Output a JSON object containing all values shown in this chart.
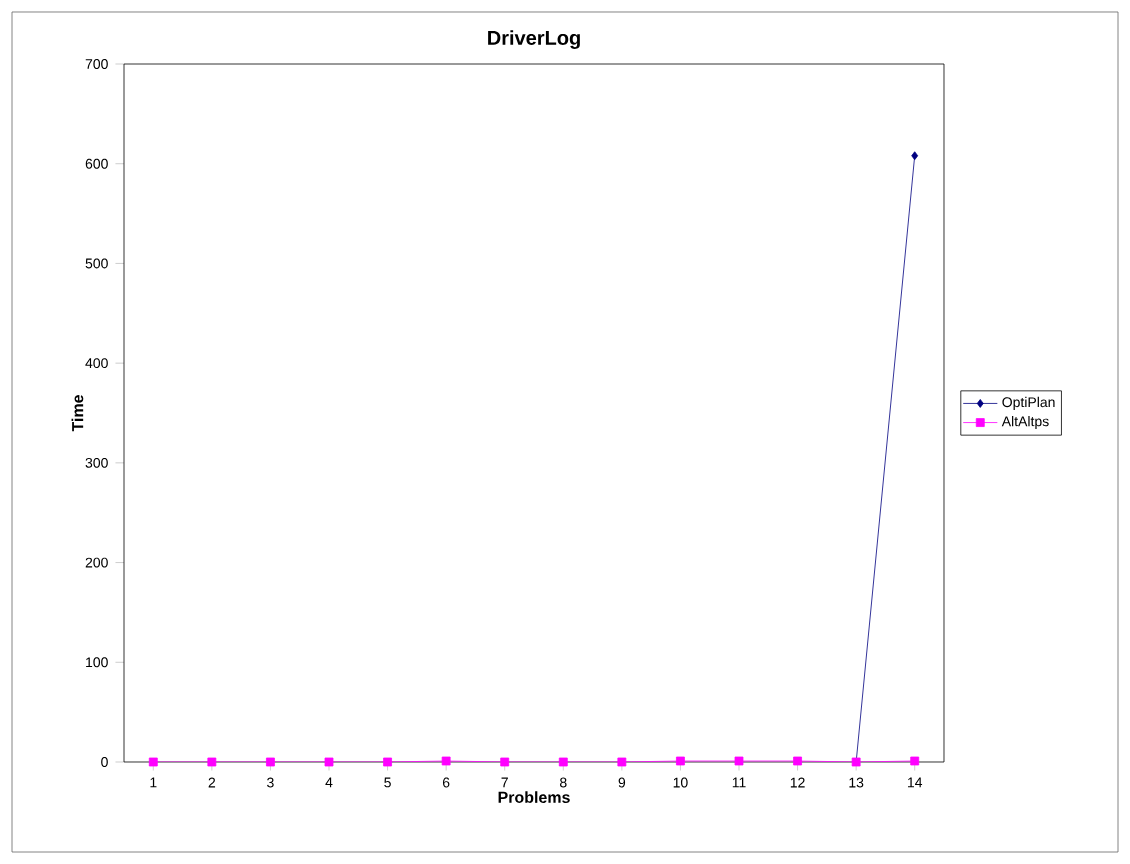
{
  "chart_data": {
    "type": "line",
    "title": "DriverLog",
    "xlabel": "Problems",
    "ylabel": "Time",
    "categories": [
      "1",
      "2",
      "3",
      "4",
      "5",
      "6",
      "7",
      "8",
      "9",
      "10",
      "11",
      "12",
      "13",
      "14"
    ],
    "series": [
      {
        "name": "OptiPlan",
        "color": "#000080",
        "marker": "diamond",
        "values": [
          null,
          null,
          null,
          null,
          null,
          null,
          null,
          null,
          null,
          null,
          null,
          null,
          0,
          608
        ]
      },
      {
        "name": "AltAltps",
        "color": "#ff00ff",
        "marker": "square",
        "values": [
          0,
          0,
          0,
          0,
          0,
          1,
          0,
          0,
          0,
          1,
          1,
          1,
          0,
          1
        ]
      }
    ],
    "ylim": [
      0,
      700
    ],
    "yticks": [
      0,
      100,
      200,
      300,
      400,
      500,
      600,
      700
    ],
    "grid": false,
    "legend": "right",
    "line_style": "solid"
  }
}
